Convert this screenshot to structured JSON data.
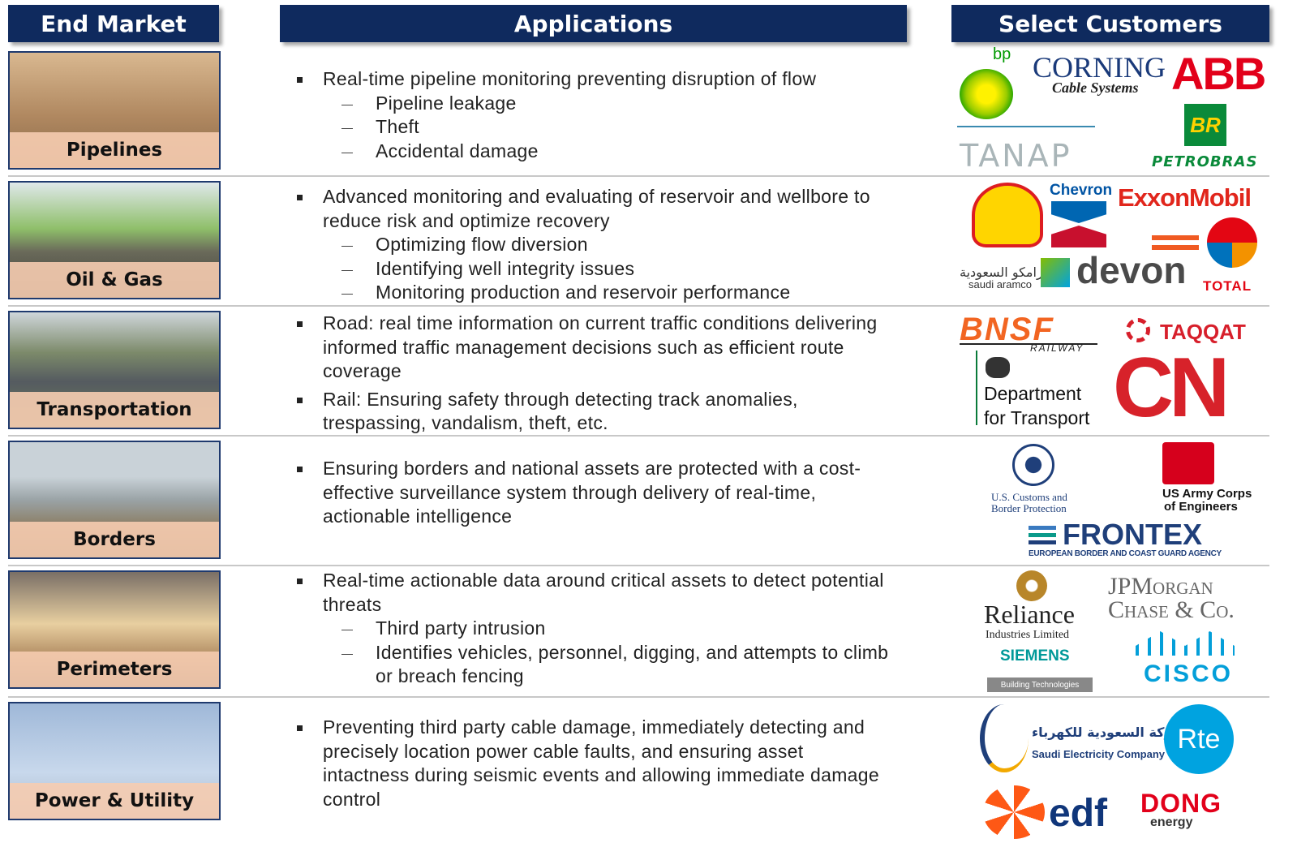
{
  "header": {
    "end_market": "End Market",
    "applications": "Applications",
    "customers": "Select Customers"
  },
  "rows": [
    {
      "market": "Pipelines",
      "bullets": [
        {
          "text": "Real-time pipeline monitoring preventing disruption of flow",
          "subs": [
            "Pipeline leakage",
            "Theft",
            "Accidental damage"
          ]
        }
      ],
      "customers": [
        "bp",
        "CORNING",
        "Cable Systems",
        "ABB",
        "BR",
        "TANAP",
        "PETROBRAS"
      ]
    },
    {
      "market": "Oil & Gas",
      "bullets": [
        {
          "text": "Advanced monitoring and evaluating of reservoir and wellbore to reduce risk and optimize recovery",
          "subs": [
            "Optimizing flow diversion",
            "Identifying well integrity issues",
            "Monitoring production and reservoir performance"
          ]
        }
      ],
      "customers": [
        "Chevron",
        "ExxonMobil",
        "أرامكو السعودية",
        "saudi aramco",
        "devon",
        "TOTAL"
      ]
    },
    {
      "market": "Transportation",
      "bullets": [
        {
          "text": "Road: real time information on current traffic conditions delivering informed traffic management decisions such as efficient route coverage",
          "subs": []
        },
        {
          "text": "Rail: Ensuring safety through detecting track anomalies, trespassing, vandalism, theft, etc.",
          "subs": []
        }
      ],
      "customers": [
        "BNSF",
        "RAILWAY",
        "TAQQAT",
        "Department",
        "for Transport",
        "CN"
      ]
    },
    {
      "market": "Borders",
      "bullets": [
        {
          "text": "Ensuring borders and national assets are protected with a cost-effective surveillance system through delivery of real-time, actionable intelligence",
          "subs": []
        }
      ],
      "customers": [
        "U.S. Customs and",
        "Border Protection",
        "US Army Corps",
        "of Engineers",
        "FRONTEX",
        "EUROPEAN BORDER AND COAST GUARD AGENCY"
      ]
    },
    {
      "market": "Perimeters",
      "bullets": [
        {
          "text": "Real-time actionable data around critical assets to detect potential threats",
          "subs": [
            "Third party intrusion",
            "Identifies vehicles, personnel, digging, and attempts to climb or breach fencing"
          ]
        }
      ],
      "customers": [
        "Reliance",
        "Industries Limited",
        "SIEMENS",
        "Building Technologies",
        "JPMorgan",
        "Chase & Co.",
        "CISCO"
      ]
    },
    {
      "market": "Power & Utility",
      "bullets": [
        {
          "text": "Preventing third party cable damage, immediately detecting and precisely location power cable faults, and ensuring asset intactness during seismic events and allowing immediate damage control",
          "subs": []
        }
      ],
      "customers": [
        "الشركة السعودية للكهرباء",
        "Saudi Electricity Company",
        "Rte",
        "edf",
        "DONG",
        "energy"
      ]
    }
  ]
}
